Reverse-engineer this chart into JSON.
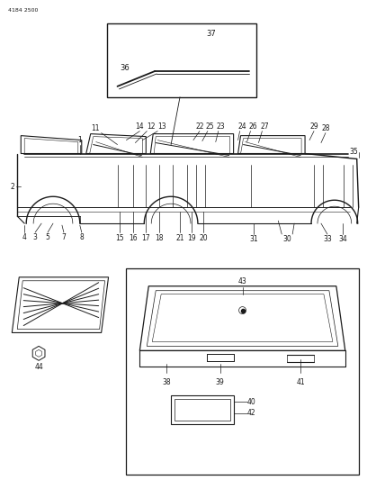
{
  "bg_color": "#ffffff",
  "line_color": "#1a1a1a",
  "text_color": "#1a1a1a",
  "part_number_text": "4184 2500",
  "fig_width": 4.08,
  "fig_height": 5.33,
  "dpi": 100
}
